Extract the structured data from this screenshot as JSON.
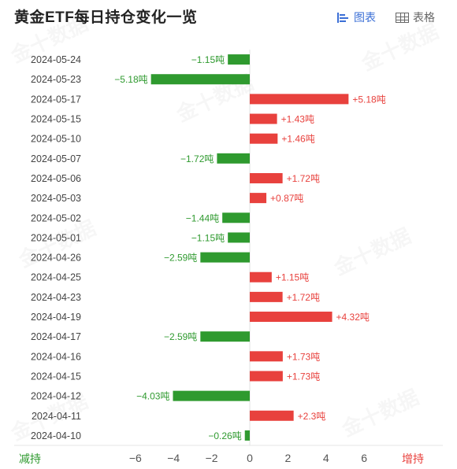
{
  "header": {
    "title": "黄金ETF每日持仓变化一览",
    "chart_toggle_label": "图表",
    "table_toggle_label": "表格"
  },
  "watermark_text": "金十数据",
  "footer": {
    "left_label": "减持",
    "right_label": "增持"
  },
  "colors": {
    "positive": "#e8413d",
    "negative": "#2f9a2f",
    "accent": "#3b6fd6"
  },
  "chart_data": {
    "type": "bar",
    "orientation": "horizontal",
    "title": "黄金ETF每日持仓变化一览",
    "value_suffix": "吨",
    "categories": [
      "2024-05-24",
      "2024-05-23",
      "2024-05-17",
      "2024-05-15",
      "2024-05-10",
      "2024-05-07",
      "2024-05-06",
      "2024-05-03",
      "2024-05-02",
      "2024-05-01",
      "2024-04-26",
      "2024-04-25",
      "2024-04-23",
      "2024-04-19",
      "2024-04-17",
      "2024-04-16",
      "2024-04-15",
      "2024-04-12",
      "2024-04-11",
      "2024-04-10"
    ],
    "values": [
      -1.15,
      -5.18,
      5.18,
      1.43,
      1.46,
      -1.72,
      1.72,
      0.87,
      -1.44,
      -1.15,
      -2.59,
      1.15,
      1.72,
      4.32,
      -2.59,
      1.73,
      1.73,
      -4.03,
      2.3,
      -0.26
    ],
    "xlim": [
      -6.5,
      7
    ],
    "xticks": [
      -6,
      -4,
      -2,
      0,
      2,
      4,
      6
    ],
    "xtick_labels": [
      "−6",
      "−4",
      "−2",
      "0",
      "2",
      "4",
      "6"
    ]
  }
}
